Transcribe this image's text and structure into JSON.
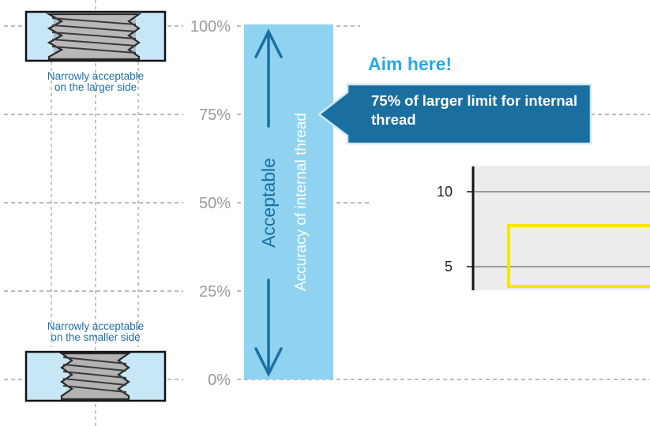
{
  "scale": {
    "levels": [
      {
        "label": "100%",
        "value": 100
      },
      {
        "label": "75%",
        "value": 75
      },
      {
        "label": "50%",
        "value": 50
      },
      {
        "label": "25%",
        "value": 25
      },
      {
        "label": "0%",
        "value": 0
      }
    ]
  },
  "thread_top_caption": [
    "Narrowly acceptable",
    "on the larger side"
  ],
  "thread_bottom_caption": [
    "Narrowly acceptable",
    "on the smaller side"
  ],
  "band": {
    "label": "Acceptable",
    "sublabel": "Accuracy of internal thread",
    "color": "#8fd3f0",
    "arrow_color": "#1a6fa0"
  },
  "aim_label": "Aim here!",
  "callout": {
    "text": "75% of larger limit for internal thread",
    "color": "#1a6fa0"
  },
  "inset_chart": {
    "ticks": [
      "10",
      "5"
    ],
    "highlight_color": "#f5e600"
  }
}
